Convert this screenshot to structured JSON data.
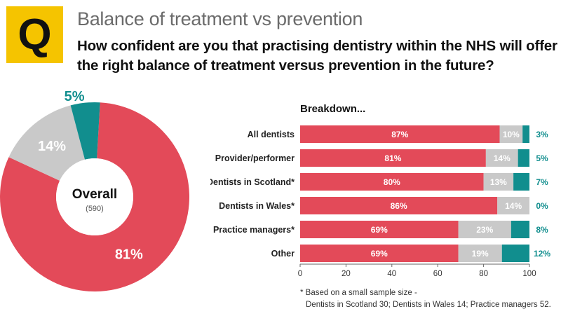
{
  "header": {
    "q_letter": "Q",
    "subtitle": "Balance of treatment vs prevention",
    "question": "How confident are you that practising dentistry within the NHS will offer the right balance of treatment versus prevention in the future?"
  },
  "colors": {
    "red": "#e34a59",
    "grey": "#c9c9c9",
    "teal": "#118e8e",
    "yellow": "#f5c400"
  },
  "chart_data": [
    {
      "type": "pie",
      "center_label": "Overall",
      "center_sublabel": "(590)",
      "slices": [
        {
          "label": "81%",
          "value": 81,
          "color": "#e34a59"
        },
        {
          "label": "14%",
          "value": 14,
          "color": "#c9c9c9"
        },
        {
          "label": "5%",
          "value": 5,
          "color": "#118e8e"
        }
      ]
    },
    {
      "type": "bar",
      "orientation": "horizontal",
      "stacked": true,
      "title": "Breakdown...",
      "categories": [
        "All dentists",
        "Provider/performer",
        "Dentists in Scotland*",
        "Dentists in Wales*",
        "Practice managers*",
        "Other"
      ],
      "series": [
        {
          "values": [
            87,
            81,
            80,
            86,
            69,
            69
          ],
          "labels": [
            "87%",
            "81%",
            "80%",
            "86%",
            "69%",
            "69%"
          ],
          "color": "#e34a59"
        },
        {
          "values": [
            10,
            14,
            13,
            14,
            23,
            19
          ],
          "labels": [
            "10%",
            "14%",
            "13%",
            "14%",
            "23%",
            "19%"
          ],
          "color": "#c9c9c9"
        },
        {
          "values": [
            3,
            5,
            7,
            0,
            8,
            12
          ],
          "labels": [
            "3%",
            "5%",
            "7%",
            "0%",
            "8%",
            "12%"
          ],
          "color": "#118e8e"
        }
      ],
      "xlim": [
        0,
        100
      ],
      "xticks": [
        "0",
        "20",
        "40",
        "60",
        "80",
        "100"
      ]
    }
  ],
  "footnote": {
    "line1": "*  Based on a small sample size -",
    "line2": "Dentists in Scotland 30; Dentists in Wales 14; Practice managers 52."
  }
}
